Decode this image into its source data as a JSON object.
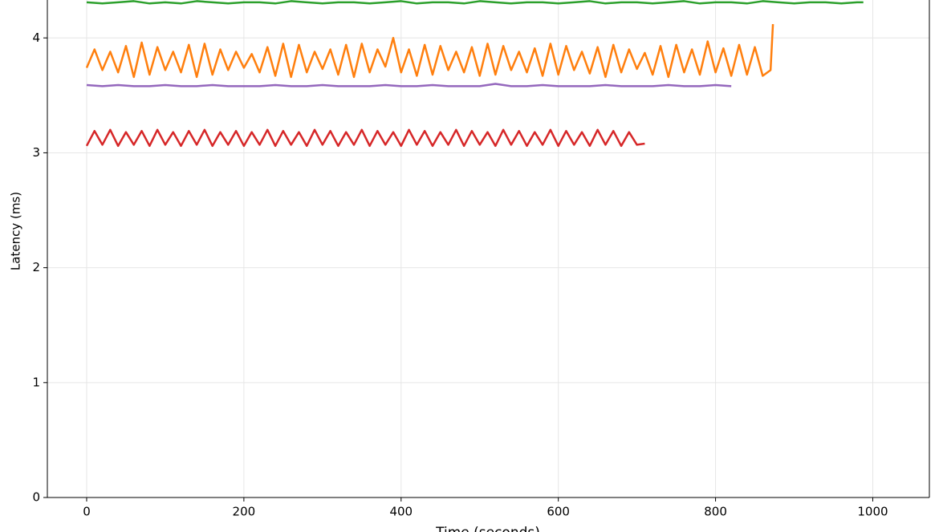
{
  "chart_data": {
    "type": "line",
    "x_label": "Time (seconds)",
    "y_label": "Latency (ms)",
    "xlim": [
      -50,
      1072
    ],
    "ylim": [
      0,
      4.33
    ],
    "xticks": [
      0,
      200,
      400,
      600,
      800,
      1000
    ],
    "yticks": [
      0,
      1,
      2,
      3,
      4
    ],
    "grid": true,
    "series": [
      {
        "color": "#2ca02c",
        "x": [
          0,
          20,
          40,
          60,
          80,
          100,
          120,
          140,
          160,
          180,
          200,
          220,
          240,
          260,
          280,
          300,
          320,
          340,
          360,
          380,
          400,
          420,
          440,
          460,
          480,
          500,
          520,
          540,
          560,
          580,
          600,
          620,
          640,
          660,
          680,
          700,
          720,
          740,
          760,
          780,
          800,
          820,
          840,
          860,
          880,
          900,
          920,
          940,
          960,
          980,
          988
        ],
        "values": [
          4.31,
          4.3,
          4.31,
          4.32,
          4.3,
          4.31,
          4.3,
          4.32,
          4.31,
          4.3,
          4.31,
          4.31,
          4.3,
          4.32,
          4.31,
          4.3,
          4.31,
          4.31,
          4.3,
          4.31,
          4.32,
          4.3,
          4.31,
          4.31,
          4.3,
          4.32,
          4.31,
          4.3,
          4.31,
          4.31,
          4.3,
          4.31,
          4.32,
          4.3,
          4.31,
          4.31,
          4.3,
          4.31,
          4.32,
          4.3,
          4.31,
          4.31,
          4.3,
          4.32,
          4.31,
          4.3,
          4.31,
          4.31,
          4.3,
          4.31,
          4.31
        ]
      },
      {
        "color": "#ff7f0e",
        "x": [
          0,
          10,
          20,
          30,
          40,
          50,
          60,
          70,
          80,
          90,
          100,
          110,
          120,
          130,
          140,
          150,
          160,
          170,
          180,
          190,
          200,
          210,
          220,
          230,
          240,
          250,
          260,
          270,
          280,
          290,
          300,
          310,
          320,
          330,
          340,
          350,
          360,
          370,
          380,
          390,
          400,
          410,
          420,
          430,
          440,
          450,
          460,
          470,
          480,
          490,
          500,
          510,
          520,
          530,
          540,
          550,
          560,
          570,
          580,
          590,
          600,
          610,
          620,
          630,
          640,
          650,
          660,
          670,
          680,
          690,
          700,
          710,
          720,
          730,
          740,
          750,
          760,
          770,
          780,
          790,
          800,
          810,
          820,
          830,
          840,
          850,
          860,
          870,
          873
        ],
        "values": [
          3.74,
          3.9,
          3.72,
          3.88,
          3.7,
          3.93,
          3.66,
          3.96,
          3.68,
          3.92,
          3.72,
          3.88,
          3.7,
          3.94,
          3.66,
          3.95,
          3.68,
          3.9,
          3.72,
          3.88,
          3.74,
          3.86,
          3.7,
          3.92,
          3.67,
          3.95,
          3.66,
          3.94,
          3.7,
          3.88,
          3.73,
          3.9,
          3.68,
          3.94,
          3.66,
          3.95,
          3.7,
          3.9,
          3.75,
          4.0,
          3.7,
          3.9,
          3.67,
          3.94,
          3.68,
          3.93,
          3.72,
          3.88,
          3.7,
          3.92,
          3.67,
          3.95,
          3.68,
          3.93,
          3.72,
          3.88,
          3.7,
          3.91,
          3.67,
          3.95,
          3.68,
          3.93,
          3.72,
          3.88,
          3.69,
          3.92,
          3.66,
          3.94,
          3.7,
          3.9,
          3.73,
          3.87,
          3.68,
          3.93,
          3.66,
          3.94,
          3.7,
          3.9,
          3.68,
          3.97,
          3.7,
          3.91,
          3.67,
          3.94,
          3.68,
          3.92,
          3.67,
          3.72,
          4.12
        ]
      },
      {
        "color": "#9467bd",
        "x": [
          0,
          20,
          40,
          60,
          80,
          100,
          120,
          140,
          160,
          180,
          200,
          220,
          240,
          260,
          280,
          300,
          320,
          340,
          360,
          380,
          400,
          420,
          440,
          460,
          480,
          500,
          520,
          540,
          560,
          580,
          600,
          620,
          640,
          660,
          680,
          700,
          720,
          740,
          760,
          780,
          800,
          820
        ],
        "values": [
          3.59,
          3.58,
          3.59,
          3.58,
          3.58,
          3.59,
          3.58,
          3.58,
          3.59,
          3.58,
          3.58,
          3.58,
          3.59,
          3.58,
          3.58,
          3.59,
          3.58,
          3.58,
          3.58,
          3.59,
          3.58,
          3.58,
          3.59,
          3.58,
          3.58,
          3.58,
          3.6,
          3.58,
          3.58,
          3.59,
          3.58,
          3.58,
          3.58,
          3.59,
          3.58,
          3.58,
          3.58,
          3.59,
          3.58,
          3.58,
          3.59,
          3.58
        ]
      },
      {
        "color": "#d62728",
        "x": [
          0,
          10,
          20,
          30,
          40,
          50,
          60,
          70,
          80,
          90,
          100,
          110,
          120,
          130,
          140,
          150,
          160,
          170,
          180,
          190,
          200,
          210,
          220,
          230,
          240,
          250,
          260,
          270,
          280,
          290,
          300,
          310,
          320,
          330,
          340,
          350,
          360,
          370,
          380,
          390,
          400,
          410,
          420,
          430,
          440,
          450,
          460,
          470,
          480,
          490,
          500,
          510,
          520,
          530,
          540,
          550,
          560,
          570,
          580,
          590,
          600,
          610,
          620,
          630,
          640,
          650,
          660,
          670,
          680,
          690,
          700,
          710
        ],
        "values": [
          3.06,
          3.19,
          3.07,
          3.2,
          3.06,
          3.18,
          3.07,
          3.19,
          3.06,
          3.2,
          3.07,
          3.18,
          3.06,
          3.19,
          3.07,
          3.2,
          3.06,
          3.18,
          3.07,
          3.19,
          3.06,
          3.18,
          3.07,
          3.2,
          3.06,
          3.19,
          3.07,
          3.18,
          3.06,
          3.2,
          3.07,
          3.19,
          3.06,
          3.18,
          3.07,
          3.2,
          3.06,
          3.19,
          3.07,
          3.18,
          3.06,
          3.2,
          3.07,
          3.19,
          3.06,
          3.18,
          3.07,
          3.2,
          3.06,
          3.19,
          3.07,
          3.18,
          3.06,
          3.2,
          3.07,
          3.19,
          3.06,
          3.18,
          3.07,
          3.2,
          3.06,
          3.19,
          3.07,
          3.18,
          3.06,
          3.2,
          3.07,
          3.19,
          3.06,
          3.18,
          3.07,
          3.08
        ]
      }
    ]
  }
}
